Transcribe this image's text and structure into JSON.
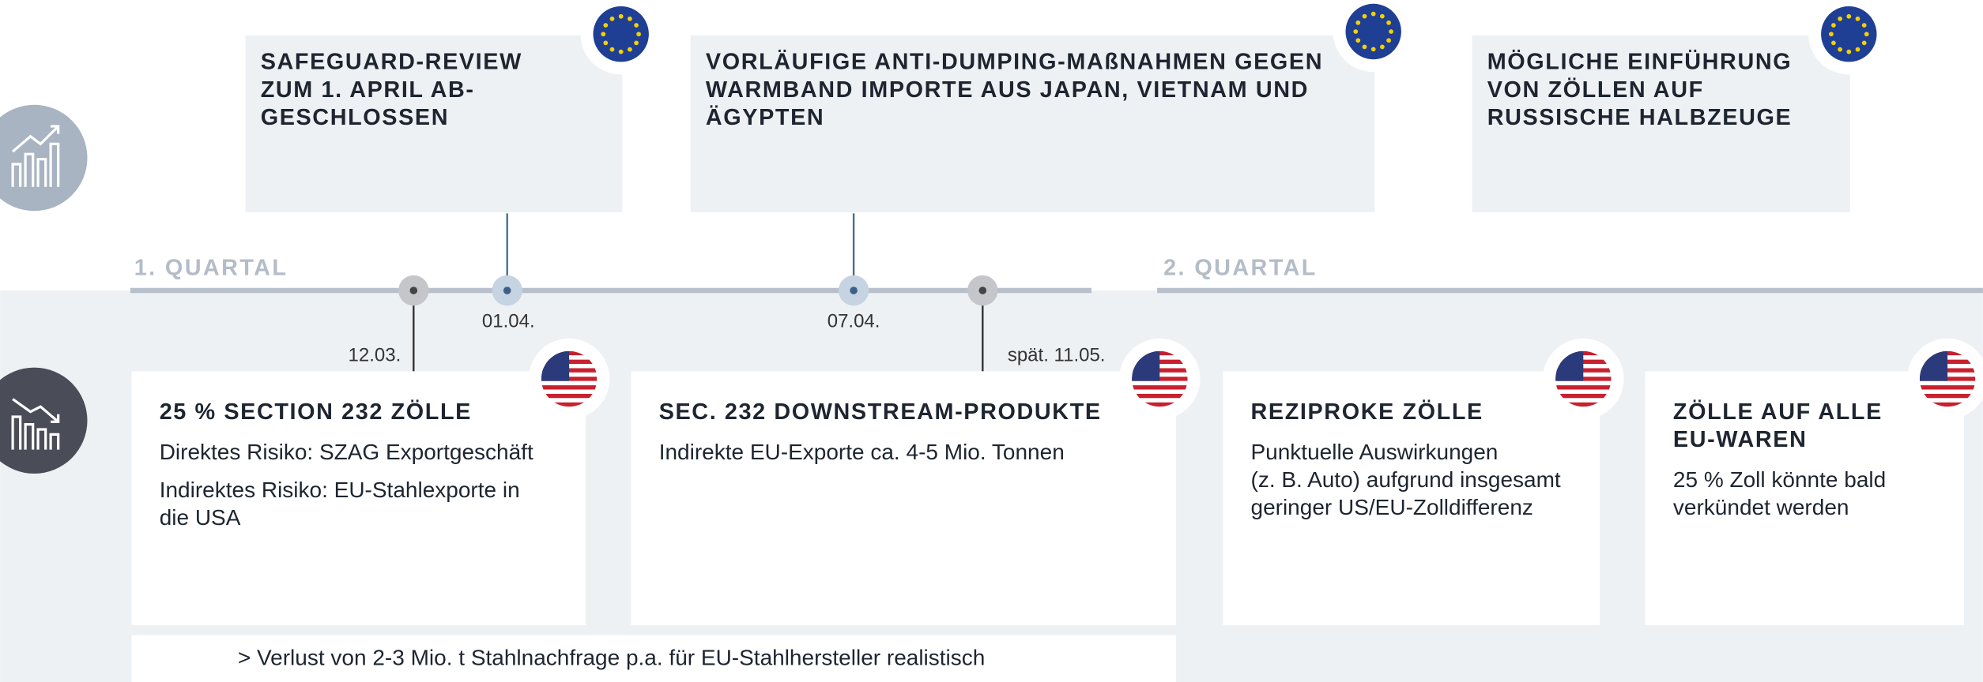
{
  "timeline": {
    "quarters": [
      "1. QUARTAL",
      "2. QUARTAL"
    ],
    "dates": [
      "12.03.",
      "01.04.",
      "07.04.",
      "spät. 11.05."
    ]
  },
  "eu_events": [
    {
      "title": [
        "SAFEGUARD-REVIEW",
        "ZUM 1. APRIL AB-",
        "GESCHLOSSEN"
      ]
    },
    {
      "title": [
        "VORLÄUFIGE ANTI-DUMPING-MAßNAHMEN GEGEN",
        "WARMBAND IMPORTE AUS JAPAN, VIETNAM UND",
        "ÄGYPTEN"
      ]
    },
    {
      "title": [
        "MÖGLICHE EINFÜHRUNG",
        "VON ZÖLLEN AUF",
        "RUSSISCHE HALBZEUGE"
      ]
    }
  ],
  "us_events": [
    {
      "title": [
        "25 % SECTION 232 ZÖLLE"
      ],
      "body": [
        [
          "Direktes Risiko: SZAG Exportgeschäft"
        ],
        [
          "Indirektes Risiko: EU-Stahlexporte in",
          "die USA"
        ]
      ]
    },
    {
      "title": [
        "SEC. 232 DOWNSTREAM-PRODUKTE"
      ],
      "body": [
        [
          "Indirekte EU-Exporte ca. 4-5 Mio. Tonnen"
        ]
      ]
    },
    {
      "title": [
        "REZIPROKE ZÖLLE"
      ],
      "body": [
        [
          "Punktuelle Auswirkungen",
          "(z. B. Auto) aufgrund insgesamt",
          "geringer US/EU-Zolldifferenz"
        ]
      ]
    },
    {
      "title": [
        "ZÖLLE AUF ALLE",
        "EU-WAREN"
      ],
      "body": [
        [
          "25 % Zoll könnte bald",
          "verkündet werden"
        ]
      ]
    }
  ],
  "summary": "> Verlust von 2-3 Mio. t Stahlnachfrage p.a. für EU-Stahlhersteller realistisch"
}
